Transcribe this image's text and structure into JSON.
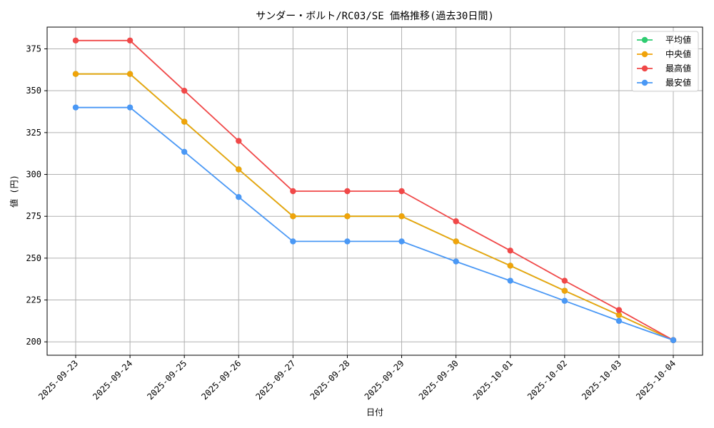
{
  "chart_data": {
    "type": "line",
    "title": "サンダー・ボルト/RC03/SE 価格推移(過去30日間)",
    "xlabel": "日付",
    "ylabel": "値 (円)",
    "categories": [
      "2025-09-23",
      "2025-09-24",
      "2025-09-25",
      "2025-09-26",
      "2025-09-27",
      "2025-09-28",
      "2025-09-29",
      "2025-09-30",
      "2025-10-01",
      "2025-10-02",
      "2025-10-03",
      "2025-10-04"
    ],
    "ylim": [
      192,
      388
    ],
    "yticks": [
      200,
      225,
      250,
      275,
      300,
      325,
      350,
      375
    ],
    "grid": true,
    "legend_position": "top-right",
    "series": [
      {
        "name": "平均値",
        "color": "#2ecc71",
        "values": [
          360,
          360,
          331.5,
          303,
          275,
          275,
          275,
          260,
          245.5,
          230.5,
          216,
          201
        ]
      },
      {
        "name": "中央値",
        "color": "#f0a30a",
        "values": [
          360,
          360,
          331.5,
          303,
          275,
          275,
          275,
          260,
          245.5,
          230.5,
          216,
          201
        ]
      },
      {
        "name": "最高値",
        "color": "#f04848",
        "values": [
          380,
          380,
          350,
          320,
          290,
          290,
          290,
          272,
          254.5,
          236.5,
          219,
          201
        ]
      },
      {
        "name": "最安値",
        "color": "#4a98f5",
        "values": [
          340,
          340,
          313.5,
          286.5,
          260,
          260,
          260,
          248,
          236.5,
          224.5,
          212.5,
          201
        ]
      }
    ]
  }
}
